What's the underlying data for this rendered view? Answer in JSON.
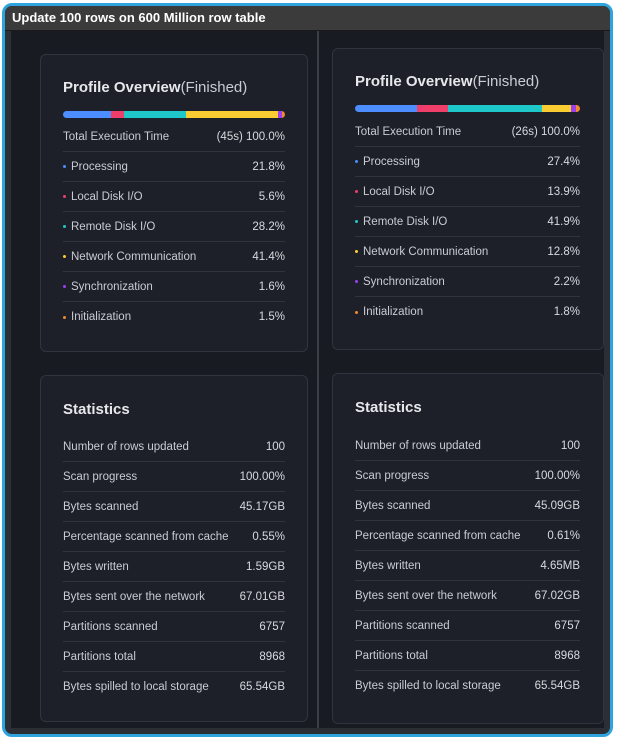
{
  "window_title": "Update 100 rows on 600 Million row table",
  "colors": {
    "processing": "#4c8dff",
    "local_disk": "#ef3e69",
    "remote_disk": "#1fc8c8",
    "network": "#f9cc32",
    "synchronization": "#9b3ff0",
    "initialization": "#f08a2c"
  },
  "left": {
    "profile": {
      "title": "Profile Overview",
      "status": "(Finished)",
      "total_label": "Total Execution Time",
      "total_value": "(45s) 100.0%",
      "items": [
        {
          "label": "Processing",
          "value": "21.8%",
          "pct": 21.8,
          "color": "#4c8dff",
          "icon": "processing-dot"
        },
        {
          "label": "Local Disk I/O",
          "value": "5.6%",
          "pct": 5.6,
          "color": "#ef3e69",
          "icon": "local-disk-dot"
        },
        {
          "label": "Remote Disk I/O",
          "value": "28.2%",
          "pct": 28.2,
          "color": "#1fc8c8",
          "icon": "remote-disk-dot"
        },
        {
          "label": "Network Communication",
          "value": "41.4%",
          "pct": 41.4,
          "color": "#f9cc32",
          "icon": "network-dot"
        },
        {
          "label": "Synchronization",
          "value": "1.6%",
          "pct": 1.6,
          "color": "#9b3ff0",
          "icon": "synchronization-dot"
        },
        {
          "label": "Initialization",
          "value": "1.5%",
          "pct": 1.5,
          "color": "#f08a2c",
          "icon": "initialization-dot"
        }
      ]
    },
    "statistics": {
      "title": "Statistics",
      "items": [
        {
          "label": "Number of rows updated",
          "value": "100"
        },
        {
          "label": "Scan progress",
          "value": "100.00%"
        },
        {
          "label": "Bytes scanned",
          "value": "45.17GB"
        },
        {
          "label": "Percentage scanned from cache",
          "value": "0.55%"
        },
        {
          "label": "Bytes written",
          "value": "1.59GB"
        },
        {
          "label": "Bytes sent over the network",
          "value": "67.01GB"
        },
        {
          "label": "Partitions scanned",
          "value": "6757"
        },
        {
          "label": "Partitions total",
          "value": "8968"
        },
        {
          "label": "Bytes spilled to local storage",
          "value": "65.54GB"
        }
      ]
    }
  },
  "right": {
    "profile": {
      "title": "Profile Overview",
      "status": "(Finished)",
      "total_label": "Total Execution Time",
      "total_value": "(26s) 100.0%",
      "items": [
        {
          "label": "Processing",
          "value": "27.4%",
          "pct": 27.4,
          "color": "#4c8dff",
          "icon": "processing-dot"
        },
        {
          "label": "Local Disk I/O",
          "value": "13.9%",
          "pct": 13.9,
          "color": "#ef3e69",
          "icon": "local-disk-dot"
        },
        {
          "label": "Remote Disk I/O",
          "value": "41.9%",
          "pct": 41.9,
          "color": "#1fc8c8",
          "icon": "remote-disk-dot"
        },
        {
          "label": "Network Communication",
          "value": "12.8%",
          "pct": 12.8,
          "color": "#f9cc32",
          "icon": "network-dot"
        },
        {
          "label": "Synchronization",
          "value": "2.2%",
          "pct": 2.2,
          "color": "#9b3ff0",
          "icon": "synchronization-dot"
        },
        {
          "label": "Initialization",
          "value": "1.8%",
          "pct": 1.8,
          "color": "#f08a2c",
          "icon": "initialization-dot"
        }
      ]
    },
    "statistics": {
      "title": "Statistics",
      "items": [
        {
          "label": "Number of rows updated",
          "value": "100"
        },
        {
          "label": "Scan progress",
          "value": "100.00%"
        },
        {
          "label": "Bytes scanned",
          "value": "45.09GB"
        },
        {
          "label": "Percentage scanned from cache",
          "value": "0.61%"
        },
        {
          "label": "Bytes written",
          "value": "4.65MB"
        },
        {
          "label": "Bytes sent over the network",
          "value": "67.02GB"
        },
        {
          "label": "Partitions scanned",
          "value": "6757"
        },
        {
          "label": "Partitions total",
          "value": "8968"
        },
        {
          "label": "Bytes spilled to local storage",
          "value": "65.54GB"
        }
      ]
    }
  }
}
